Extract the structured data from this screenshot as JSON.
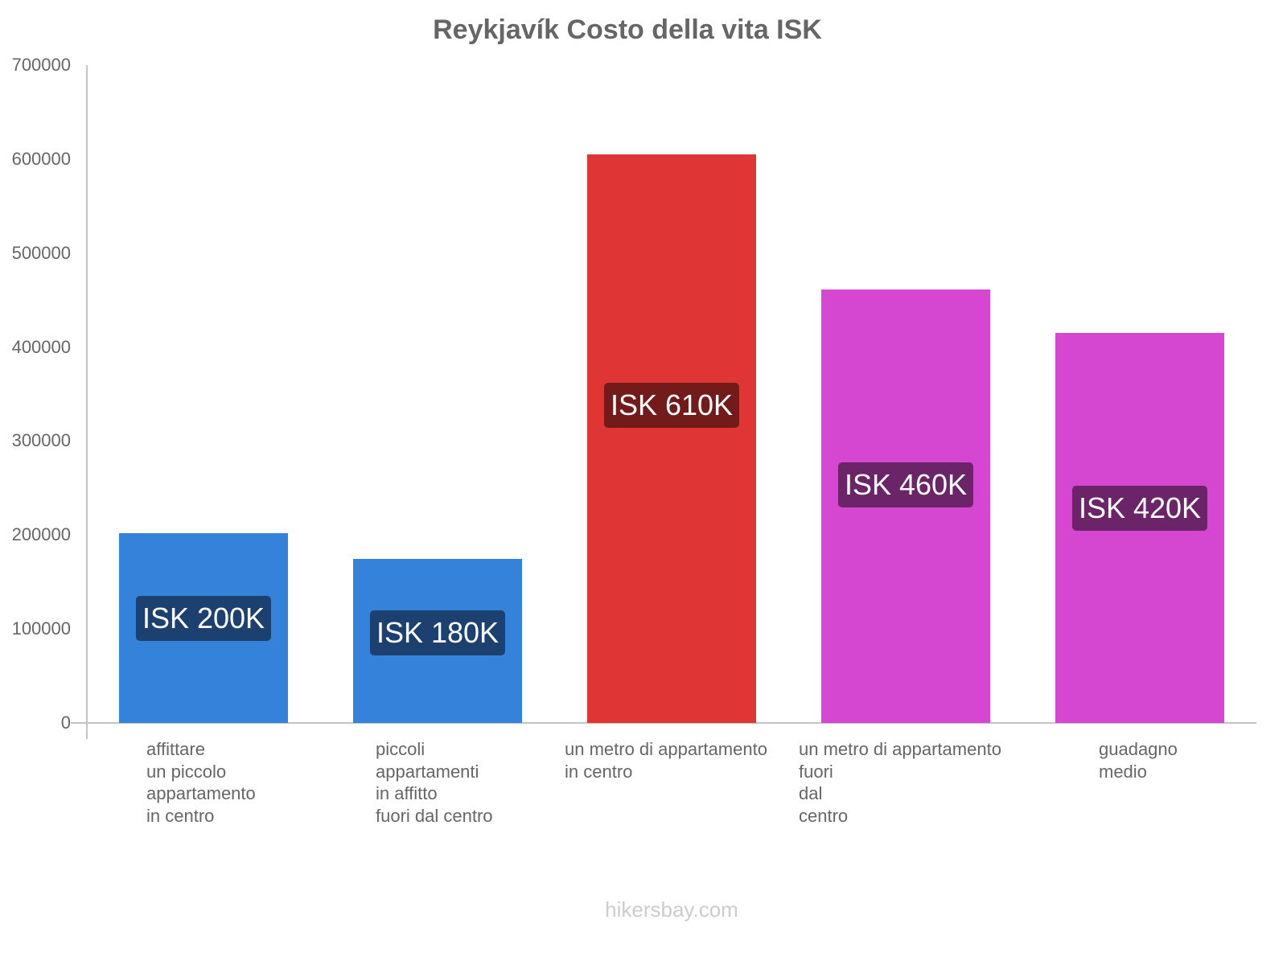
{
  "chart_data": {
    "type": "bar",
    "title": "Reykjavík Costo della vita ISK",
    "xlabel": "",
    "ylabel": "",
    "ylim": [
      0,
      700000
    ],
    "yticks": [
      "0",
      "100000",
      "200000",
      "300000",
      "400000",
      "500000",
      "600000",
      "700000"
    ],
    "grid": false,
    "legend": null,
    "categories": [
      "affittare un piccolo appartamento in centro",
      "piccoli appartamenti in affitto fuori dal centro",
      "un metro di appartamento in centro",
      "un metro di appartamento fuori dal centro",
      "guadagno medio"
    ],
    "category_lines": [
      [
        "affittare",
        "un piccolo",
        "appartamento",
        "in centro"
      ],
      [
        "piccoli",
        "appartamenti",
        "in affitto",
        "fuori dal centro"
      ],
      [
        "un metro di appartamento",
        "in centro"
      ],
      [
        "un metro di appartamento",
        "fuori",
        "dal",
        "centro"
      ],
      [
        "guadagno",
        "medio"
      ]
    ],
    "values": [
      202000,
      175000,
      605000,
      461000,
      415000
    ],
    "data_labels": [
      "ISK 200K",
      "ISK 180K",
      "ISK 610K",
      "ISK 460K",
      "ISK 420K"
    ],
    "colors": [
      "#3482da",
      "#3482da",
      "#e03535",
      "#d647d1",
      "#d647d1"
    ],
    "label_bg_colors": [
      "#1c4070",
      "#1c4070",
      "#731b1b",
      "#6a2467",
      "#6a2467"
    ]
  },
  "footer": "hikersbay.com"
}
